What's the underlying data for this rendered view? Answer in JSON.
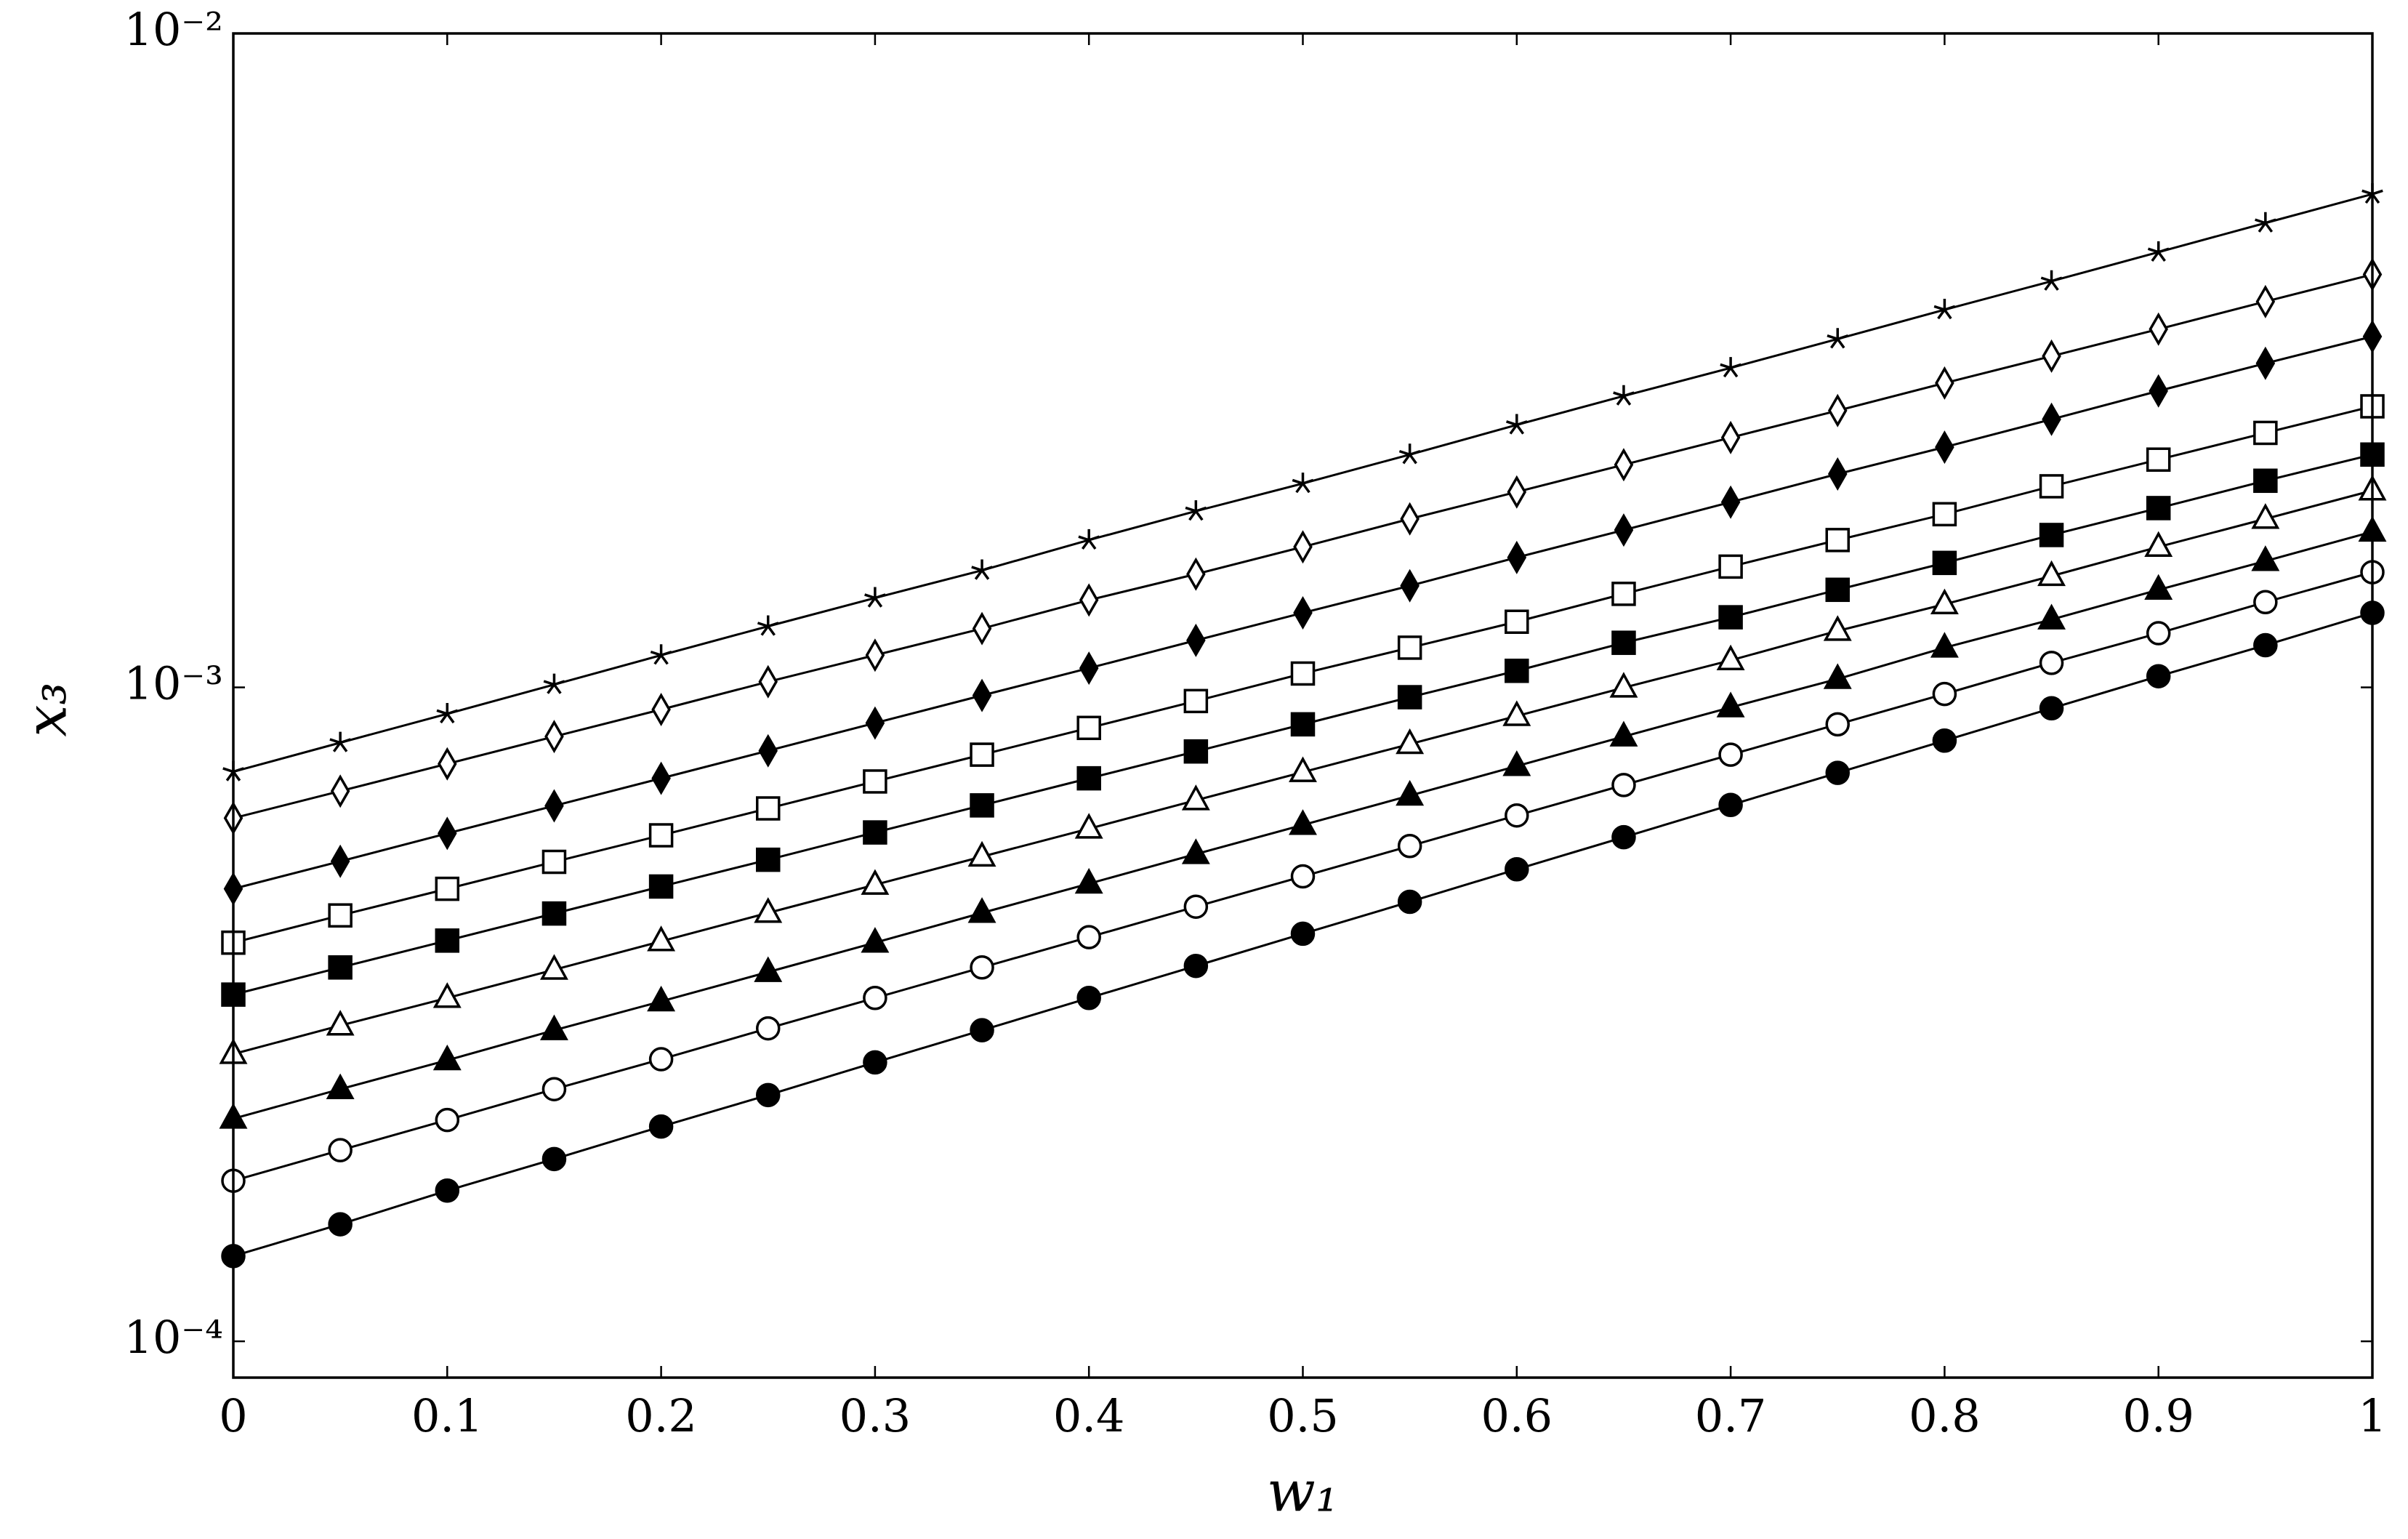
{
  "chart_data": {
    "type": "line",
    "x_label": "w₁",
    "y_label": "x₃",
    "y_log": true,
    "xlim": [
      0,
      1
    ],
    "ylim": [
      8.8e-05,
      0.01
    ],
    "xticks": [
      0,
      0.1,
      0.2,
      0.3,
      0.4,
      0.5,
      0.6,
      0.7,
      0.8,
      0.9,
      1
    ],
    "yticks": [
      {
        "value": 0.0001,
        "label": "10⁻⁴"
      },
      {
        "value": 0.001,
        "label": "10⁻³"
      },
      {
        "value": 0.01,
        "label": "10⁻²"
      }
    ],
    "x": [
      0,
      0.05,
      0.1,
      0.15,
      0.2,
      0.25,
      0.3,
      0.35,
      0.4,
      0.45,
      0.5,
      0.55,
      0.6,
      0.65,
      0.7,
      0.75,
      0.8,
      0.85,
      0.9,
      0.95,
      1
    ],
    "series": [
      {
        "color": "#000000",
        "marker": "star",
        "values": [
          0.000743,
          0.000823,
          0.000911,
          0.00101,
          0.00112,
          0.00124,
          0.00137,
          0.00151,
          0.00168,
          0.00186,
          0.00205,
          0.00227,
          0.00252,
          0.00279,
          0.00308,
          0.00341,
          0.00378,
          0.00418,
          0.00463,
          0.00513,
          0.00568
        ]
      },
      {
        "color": "#000000",
        "marker": "diamond-open",
        "values": [
          0.000631,
          0.000694,
          0.000764,
          0.000841,
          0.000925,
          0.00102,
          0.00112,
          0.00123,
          0.00136,
          0.00149,
          0.00164,
          0.00181,
          0.00199,
          0.00219,
          0.00241,
          0.00265,
          0.00292,
          0.00321,
          0.00353,
          0.00389,
          0.00428
        ]
      },
      {
        "color": "#000000",
        "marker": "diamond-filled",
        "values": [
          0.000492,
          0.000542,
          0.000598,
          0.000659,
          0.000726,
          0.0008,
          0.000882,
          0.000972,
          0.00107,
          0.00118,
          0.0013,
          0.00143,
          0.00158,
          0.00174,
          0.00192,
          0.00212,
          0.00233,
          0.00257,
          0.00284,
          0.00313,
          0.00344
        ]
      },
      {
        "color": "#000000",
        "marker": "square-open",
        "values": [
          0.000407,
          0.000448,
          0.000492,
          0.000541,
          0.000594,
          0.000653,
          0.000718,
          0.000789,
          0.000867,
          0.000953,
          0.00105,
          0.00115,
          0.00126,
          0.00139,
          0.00153,
          0.00168,
          0.00184,
          0.00203,
          0.00223,
          0.00245,
          0.00269
        ]
      },
      {
        "color": "#000000",
        "marker": "square-filled",
        "values": [
          0.000339,
          0.000373,
          0.00041,
          0.000451,
          0.000496,
          0.000545,
          0.0006,
          0.00066,
          0.000726,
          0.000798,
          0.000878,
          0.000966,
          0.00106,
          0.00117,
          0.00128,
          0.00141,
          0.00155,
          0.00171,
          0.00188,
          0.00207,
          0.00227
        ]
      },
      {
        "color": "#000000",
        "marker": "triangle-open",
        "values": [
          0.000275,
          0.000304,
          0.000335,
          0.00037,
          0.000409,
          0.000452,
          0.000499,
          0.000551,
          0.000608,
          0.000672,
          0.000742,
          0.000819,
          0.000904,
          0.000999,
          0.0011,
          0.00122,
          0.00134,
          0.00148,
          0.00164,
          0.00181,
          0.002
        ]
      },
      {
        "color": "#000000",
        "marker": "triangle-filled",
        "values": [
          0.000219,
          0.000243,
          0.000269,
          0.000299,
          0.000331,
          0.000367,
          0.000407,
          0.000452,
          0.000501,
          0.000556,
          0.000616,
          0.000683,
          0.000758,
          0.000841,
          0.000932,
          0.00103,
          0.00115,
          0.00127,
          0.00141,
          0.00156,
          0.00173
        ]
      },
      {
        "color": "#000000",
        "marker": "circle-open",
        "values": [
          0.000176,
          0.000196,
          0.000218,
          0.000243,
          0.00027,
          0.000301,
          0.000335,
          0.000373,
          0.000415,
          0.000462,
          0.000514,
          0.000572,
          0.000637,
          0.000709,
          0.000789,
          0.000878,
          0.000977,
          0.00109,
          0.00121,
          0.00135,
          0.0015
        ]
      },
      {
        "color": "#000000",
        "marker": "circle-filled",
        "values": [
          0.000135,
          0.000151,
          0.00017,
          0.00019,
          0.000213,
          0.000238,
          0.000267,
          0.000299,
          0.000335,
          0.000375,
          0.00042,
          0.00047,
          0.000527,
          0.00059,
          0.000661,
          0.00074,
          0.000829,
          0.000929,
          0.00104,
          0.00116,
          0.0013
        ]
      }
    ]
  }
}
